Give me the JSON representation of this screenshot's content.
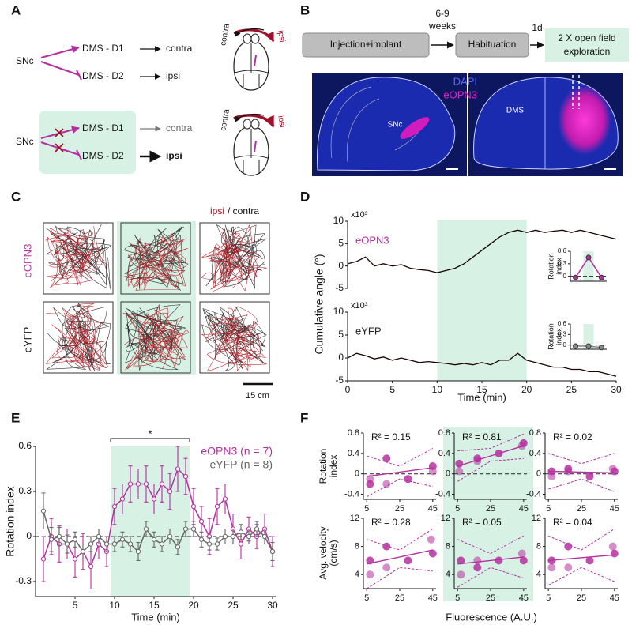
{
  "panel_labels": {
    "a": "A",
    "b": "B",
    "c": "C",
    "d": "D",
    "e": "E",
    "f": "F"
  },
  "panel_a": {
    "normal": {
      "source": "SNc",
      "d1": "DMS - D1",
      "d1_effect": "contra",
      "d2": "DMS - D2",
      "d2_effect": "ipsi",
      "turn_contra": "contra",
      "turn_ipsi": "ipsi"
    },
    "inhibited": {
      "source": "SNc",
      "d1": "DMS - D1",
      "d1_effect": "contra",
      "d2": "DMS - D2",
      "d2_effect": "ipsi",
      "turn_contra": "contra",
      "turn_ipsi": "ipsi"
    }
  },
  "panel_b": {
    "step_1": "Injection+implant",
    "gap_1": [
      "6-9",
      "weeks"
    ],
    "step_2": "Habituation",
    "gap_2": "1d",
    "step_3": [
      "2 X open field",
      "exploration"
    ],
    "stain_1": "DAPI",
    "stain_2": "eOPN3",
    "region_1": "SNc",
    "region_2": "DMS"
  },
  "panel_c": {
    "legend_ipsi": "ipsi",
    "legend_contra": "/ contra",
    "row_1": "eOPN3",
    "row_2": "eYFP",
    "scale": "15 cm"
  },
  "chart_data": [
    {
      "type": "line",
      "label": "eOPN3",
      "ylabel": "Cumulative angle (°)",
      "y_multiplier": "x10³",
      "x": [
        0,
        1,
        2,
        3,
        4,
        5,
        6,
        7,
        8,
        9,
        10,
        11,
        12,
        13,
        14,
        15,
        16,
        17,
        18,
        19,
        20,
        21,
        22,
        23,
        24,
        25,
        26,
        27,
        28,
        29,
        30
      ],
      "series": [
        {
          "color": "#1a0505",
          "values": [
            0.5,
            1,
            2,
            0,
            0.5,
            0,
            0.3,
            -0.5,
            -0.8,
            -1,
            -1.5,
            -1,
            -0.5,
            0.5,
            2,
            3.5,
            5,
            6.5,
            7.5,
            8,
            7.5,
            8,
            7.5,
            7.8,
            8,
            7.5,
            8,
            7.5,
            7,
            6.5,
            6
          ]
        }
      ],
      "xlim": [
        0,
        30
      ],
      "ylim": [
        -5,
        10
      ],
      "yticks": [
        -5,
        0,
        5,
        10
      ],
      "highlight": [
        10,
        20
      ]
    },
    {
      "type": "line",
      "label": "eYFP",
      "y_multiplier": "x10³",
      "xlabel": "Time (min)",
      "x": [
        0,
        1,
        2,
        3,
        4,
        5,
        6,
        7,
        8,
        9,
        10,
        11,
        12,
        13,
        14,
        15,
        16,
        17,
        18,
        19,
        20,
        21,
        22,
        23,
        24,
        25,
        26,
        27,
        28,
        29,
        30
      ],
      "series": [
        {
          "color": "#1a0505",
          "values": [
            0,
            1,
            0.5,
            -0.2,
            0.2,
            -0.5,
            0,
            -0.5,
            -1,
            -0.8,
            -1,
            -1.2,
            -1.5,
            -1.2,
            -1.5,
            -1,
            -1.5,
            -0.5,
            -0.5,
            1,
            -0.5,
            -1,
            -1.5,
            -2,
            -2,
            -2.5,
            -2.5,
            -3,
            -3,
            -3.5,
            -4
          ]
        }
      ],
      "xlim": [
        0,
        30
      ],
      "ylim": [
        -5,
        10
      ],
      "xticks": [
        0,
        5,
        10,
        15,
        20,
        25,
        30
      ],
      "yticks": [
        -5,
        0,
        5,
        10
      ],
      "highlight": [
        10,
        20
      ]
    },
    {
      "type": "line",
      "ylabel": [
        "Rotation",
        "index"
      ],
      "x": [
        1,
        2,
        3
      ],
      "values": [
        -0.03,
        0.45,
        -0.03
      ],
      "color": "#b5309f",
      "markers": true,
      "xlim": [
        0.6,
        3.4
      ],
      "ylim": [
        -0.12,
        0.6
      ],
      "yticks": [
        0,
        0.3,
        0.6
      ],
      "highlight": [
        1.6,
        2.4
      ],
      "zero_line": true
    },
    {
      "type": "line",
      "ylabel": [
        "Rotation",
        "index"
      ],
      "x": [
        1,
        2,
        3
      ],
      "values": [
        -0.03,
        -0.03,
        -0.07
      ],
      "color": "#888888",
      "markers": true,
      "xlim": [
        0.6,
        3.4
      ],
      "ylim": [
        -0.12,
        0.6
      ],
      "yticks": [
        0,
        0.3,
        0.6
      ],
      "highlight": [
        1.6,
        2.4
      ],
      "zero_line": true
    },
    {
      "type": "line",
      "xlabel": "Time (min)",
      "ylabel": "Rotation index",
      "markers": true,
      "x": [
        1,
        2,
        3,
        4,
        5,
        6,
        7,
        8,
        9,
        10,
        11,
        12,
        13,
        14,
        15,
        16,
        17,
        18,
        19,
        20,
        21,
        22,
        23,
        24,
        25,
        26,
        27,
        28,
        29,
        30
      ],
      "series": [
        {
          "name": "eOPN3 (n = 7)",
          "color": "#b5309f",
          "values": [
            -0.15,
            0,
            -0.05,
            -0.05,
            -0.15,
            -0.1,
            -0.2,
            -0.05,
            -0.1,
            0.2,
            0.25,
            0.35,
            0.35,
            0.35,
            0.25,
            0.35,
            0.3,
            0.45,
            0.4,
            0.2,
            0.1,
            0,
            0.2,
            0.25,
            0.05,
            -0.05,
            0.05,
            0,
            0.05,
            -0.1
          ],
          "errors": [
            0.15,
            0.12,
            0.12,
            0.1,
            0.12,
            0.12,
            0.15,
            0.1,
            0.1,
            0.12,
            0.1,
            0.12,
            0.1,
            0.12,
            0.1,
            0.12,
            0.12,
            0.15,
            0.12,
            0.12,
            0.1,
            0.12,
            0.12,
            0.1,
            0.1,
            0.1,
            0.08,
            0.08,
            0.1,
            0.1
          ]
        },
        {
          "name": "eYFP (n = 8)",
          "color": "#666666",
          "values": [
            0.17,
            -0.02,
            0,
            -0.05,
            -0.02,
            -0.1,
            -0.05,
            0,
            -0.05,
            -0.05,
            -0.02,
            -0.05,
            -0.1,
            0.05,
            -0.02,
            -0.05,
            0,
            -0.07,
            0.05,
            0.05,
            -0.02,
            -0.05,
            -0.05,
            0,
            0,
            0.03,
            0,
            0.05,
            0,
            -0.1
          ],
          "errors": [
            0.12,
            0.08,
            0.06,
            0.06,
            0.05,
            0.05,
            0.05,
            0.05,
            0.05,
            0.05,
            0.05,
            0.05,
            0.06,
            0.05,
            0.05,
            0.05,
            0.05,
            0.05,
            0.05,
            0.05,
            0.05,
            0.04,
            0.04,
            0.05,
            0.05,
            0.05,
            0.05,
            0.05,
            0.05,
            0.06
          ]
        }
      ],
      "xlim": [
        0,
        30.5
      ],
      "ylim": [
        -0.4,
        0.6
      ],
      "xticks": [
        5,
        10,
        15,
        20,
        25,
        30
      ],
      "yticks": [
        -0.3,
        0,
        0.3,
        0.6
      ],
      "highlight": [
        9.5,
        19.5
      ],
      "significance": {
        "x": [
          9.5,
          19.5
        ],
        "label": "*"
      },
      "zero_line": true,
      "legend": "upper right"
    },
    {
      "type": "scatter",
      "ylabel": [
        "Rotation",
        "index"
      ],
      "r2": "R² = 0.15",
      "color": "#b5309f",
      "x": [
        7,
        7,
        17,
        17,
        30,
        45,
        45
      ],
      "y": [
        -0.2,
        -0.1,
        0.3,
        -0.2,
        -0.1,
        0.05,
        0.15
      ],
      "fit": {
        "x": [
          5,
          45
        ],
        "y": [
          -0.05,
          0.12
        ]
      },
      "ci": {
        "x": [
          5,
          25,
          45
        ],
        "upper": [
          0.35,
          0.15,
          0.5
        ],
        "lower": [
          -0.45,
          -0.1,
          -0.25
        ]
      },
      "xlim": [
        3,
        47
      ],
      "ylim": [
        -0.5,
        0.8
      ],
      "xticks": [
        5,
        25,
        45
      ],
      "yticks": [
        -0.4,
        0,
        0.4,
        0.8
      ],
      "zero_line": true
    },
    {
      "type": "scatter",
      "r2": "R² = 0.81",
      "color": "#b5309f",
      "highlight": true,
      "x": [
        6,
        6,
        17,
        17,
        30,
        44,
        45
      ],
      "y": [
        0.2,
        0.05,
        0.3,
        0.25,
        0.4,
        0.55,
        0.6
      ],
      "fit": {
        "x": [
          5,
          45
        ],
        "y": [
          0.15,
          0.55
        ]
      },
      "ci": {
        "x": [
          5,
          25,
          45
        ],
        "upper": [
          0.45,
          0.5,
          0.78
        ],
        "lower": [
          -0.15,
          0.25,
          0.3
        ]
      },
      "xlim": [
        3,
        47
      ],
      "ylim": [
        -0.5,
        0.8
      ],
      "xticks": [
        5,
        25,
        45
      ],
      "yticks": [
        -0.4,
        0,
        0.4,
        0.8
      ],
      "zero_line": true
    },
    {
      "type": "scatter",
      "r2": "R² = 0.02",
      "color": "#b5309f",
      "x": [
        7,
        7,
        17,
        17,
        30,
        44,
        45
      ],
      "y": [
        0.05,
        -0.05,
        0.1,
        0.05,
        -0.05,
        0.1,
        0.05
      ],
      "fit": {
        "x": [
          5,
          45
        ],
        "y": [
          0.05,
          0.02
        ]
      },
      "ci": {
        "x": [
          5,
          25,
          45
        ],
        "upper": [
          0.4,
          0.2,
          0.4
        ],
        "lower": [
          -0.3,
          -0.1,
          -0.35
        ]
      },
      "xlim": [
        3,
        47
      ],
      "ylim": [
        -0.5,
        0.8
      ],
      "xticks": [
        5,
        25,
        45
      ],
      "yticks": [
        -0.4,
        0,
        0.4,
        0.8
      ],
      "zero_line": true
    },
    {
      "type": "scatter",
      "ylabel": [
        "Avg. velocity",
        "(cm/s)"
      ],
      "r2": "R² = 0.28",
      "color": "#b5309f",
      "x": [
        7,
        7,
        17,
        17,
        30,
        44,
        45
      ],
      "y": [
        6,
        4,
        8,
        5,
        6,
        9,
        7
      ],
      "fit": {
        "x": [
          5,
          45
        ],
        "y": [
          5.5,
          7.5
        ]
      },
      "ci": {
        "x": [
          5,
          25,
          45
        ],
        "upper": [
          9,
          7.5,
          10.5
        ],
        "lower": [
          2,
          5,
          4.5
        ]
      },
      "xlim": [
        3,
        47
      ],
      "ylim": [
        2,
        12
      ],
      "xticks": [
        5,
        25,
        45
      ],
      "yticks": [
        4,
        8,
        12
      ]
    },
    {
      "type": "scatter",
      "r2": "R² = 0.05",
      "xlabel": "Fluorescence (A.U.)",
      "color": "#b5309f",
      "highlight": true,
      "x": [
        7,
        7,
        17,
        17,
        30,
        44,
        45
      ],
      "y": [
        6,
        4,
        5,
        6,
        6,
        7,
        6
      ],
      "fit": {
        "x": [
          5,
          45
        ],
        "y": [
          5.5,
          6.5
        ]
      },
      "ci": {
        "x": [
          5,
          25,
          45
        ],
        "upper": [
          9,
          7,
          9.5
        ],
        "lower": [
          2.2,
          5,
          3.5
        ]
      },
      "xlim": [
        3,
        47
      ],
      "ylim": [
        2,
        12
      ],
      "xticks": [
        5,
        25,
        45
      ],
      "yticks": [
        4,
        8,
        12
      ]
    },
    {
      "type": "scatter",
      "r2": "R² = 0.04",
      "color": "#b5309f",
      "x": [
        7,
        7,
        17,
        17,
        30,
        44,
        45
      ],
      "y": [
        6,
        5,
        8,
        5,
        6,
        8,
        7
      ],
      "fit": {
        "x": [
          5,
          45
        ],
        "y": [
          6,
          6.8
        ]
      },
      "ci": {
        "x": [
          5,
          25,
          45
        ],
        "upper": [
          9.5,
          7.5,
          10.5
        ],
        "lower": [
          2.5,
          5,
          3
        ]
      },
      "xlim": [
        3,
        47
      ],
      "ylim": [
        2,
        12
      ],
      "xticks": [
        5,
        25,
        45
      ],
      "yticks": [
        4,
        8,
        12
      ]
    }
  ]
}
